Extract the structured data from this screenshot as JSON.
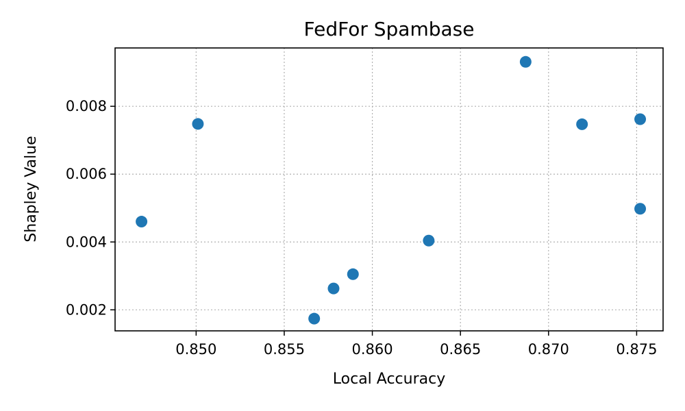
{
  "chart_data": {
    "type": "scatter",
    "title": "FedFor Spambase",
    "xlabel": "Local Accuracy",
    "ylabel": "Shapley Value",
    "xlim": [
      0.8454,
      0.8765
    ],
    "ylim": [
      0.00138,
      0.00972
    ],
    "xticks": [
      0.85,
      0.855,
      0.86,
      0.865,
      0.87,
      0.875
    ],
    "xtick_labels": [
      "0.850",
      "0.855",
      "0.860",
      "0.865",
      "0.870",
      "0.875"
    ],
    "yticks": [
      0.002,
      0.004,
      0.006,
      0.008
    ],
    "ytick_labels": [
      "0.002",
      "0.004",
      "0.006",
      "0.008"
    ],
    "grid": true,
    "marker_color": "#1f77b4",
    "points": [
      {
        "x": 0.8469,
        "y": 0.0046
      },
      {
        "x": 0.8501,
        "y": 0.00748
      },
      {
        "x": 0.8567,
        "y": 0.00174
      },
      {
        "x": 0.8578,
        "y": 0.00263
      },
      {
        "x": 0.8589,
        "y": 0.00305
      },
      {
        "x": 0.8632,
        "y": 0.00404
      },
      {
        "x": 0.8687,
        "y": 0.00931
      },
      {
        "x": 0.8719,
        "y": 0.00747
      },
      {
        "x": 0.8752,
        "y": 0.00762
      },
      {
        "x": 0.8752,
        "y": 0.00498
      }
    ]
  }
}
